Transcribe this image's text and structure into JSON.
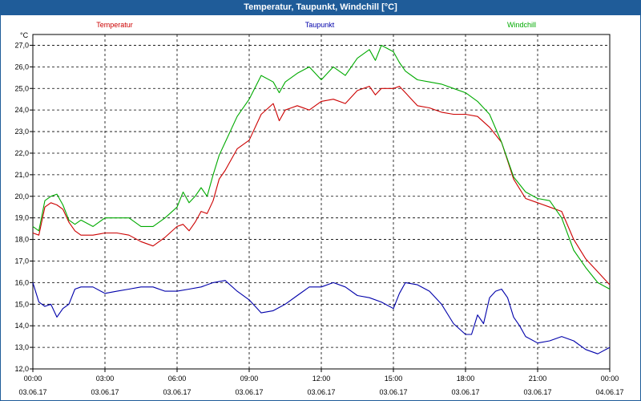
{
  "window": {
    "title": "Temperatur, Taupunkt, Windchill [°C]"
  },
  "colors": {
    "titlebar": "#1f5c99",
    "grid": "#000000",
    "temperatur": "#cc0000",
    "taupunkt": "#0000aa",
    "windchill": "#00aa00"
  },
  "chart_data": {
    "type": "line",
    "title": "Temperatur, Taupunkt, Windchill [°C]",
    "ylabel": "°C",
    "ylim": [
      12.0,
      27.5
    ],
    "yticks": [
      "12,0",
      "13,0",
      "14,0",
      "15,0",
      "16,0",
      "17,0",
      "18,0",
      "19,0",
      "20,0",
      "21,0",
      "22,0",
      "23,0",
      "24,0",
      "25,0",
      "26,0",
      "27,0"
    ],
    "xlim": [
      0,
      24
    ],
    "xticks": [
      {
        "time": "00:00",
        "date": "03.06.17"
      },
      {
        "time": "03:00",
        "date": "03.06.17"
      },
      {
        "time": "06:00",
        "date": "03.06.17"
      },
      {
        "time": "09:00",
        "date": "03.06.17"
      },
      {
        "time": "12:00",
        "date": "03.06.17"
      },
      {
        "time": "15:00",
        "date": "03.06.17"
      },
      {
        "time": "18:00",
        "date": "03.06.17"
      },
      {
        "time": "21:00",
        "date": "03.06.17"
      },
      {
        "time": "00:00",
        "date": "04.06.17"
      }
    ],
    "series": [
      {
        "name": "Temperatur",
        "color": "#cc0000",
        "x": [
          0,
          0.25,
          0.5,
          0.75,
          1,
          1.25,
          1.5,
          1.75,
          2,
          2.5,
          3,
          3.5,
          4,
          4.5,
          5,
          5.5,
          6,
          6.25,
          6.5,
          6.75,
          7,
          7.25,
          7.5,
          7.75,
          8,
          8.5,
          9,
          9.5,
          10,
          10.25,
          10.5,
          10.75,
          11,
          11.5,
          12,
          12.5,
          13,
          13.5,
          14,
          14.25,
          14.5,
          15,
          15.25,
          15.5,
          16,
          16.5,
          17,
          17.5,
          18,
          18.5,
          19,
          19.5,
          20,
          20.5,
          21,
          21.5,
          22,
          22.5,
          23,
          23.5,
          24
        ],
        "values": [
          18.3,
          18.2,
          19.5,
          19.7,
          19.6,
          19.4,
          18.8,
          18.4,
          18.2,
          18.2,
          18.3,
          18.3,
          18.2,
          17.9,
          17.7,
          18.1,
          18.6,
          18.7,
          18.4,
          18.8,
          19.3,
          19.2,
          19.8,
          20.8,
          21.2,
          22.2,
          22.6,
          23.8,
          24.3,
          23.5,
          24.0,
          24.1,
          24.2,
          24.0,
          24.4,
          24.5,
          24.3,
          24.9,
          25.1,
          24.7,
          25.0,
          25.0,
          25.1,
          24.8,
          24.2,
          24.1,
          23.9,
          23.8,
          23.8,
          23.7,
          23.2,
          22.5,
          20.8,
          19.9,
          19.7,
          19.5,
          19.3,
          18.0,
          17.1,
          16.5,
          15.9
        ]
      },
      {
        "name": "Taupunkt",
        "color": "#0000aa",
        "x": [
          0,
          0.25,
          0.5,
          0.75,
          1,
          1.25,
          1.5,
          1.75,
          2,
          2.5,
          3,
          3.5,
          4,
          4.5,
          5,
          5.5,
          6,
          6.5,
          7,
          7.5,
          8,
          8.5,
          9,
          9.5,
          10,
          10.5,
          11,
          11.5,
          12,
          12.5,
          13,
          13.5,
          14,
          14.5,
          15,
          15.25,
          15.5,
          16,
          16.5,
          17,
          17.5,
          18,
          18.25,
          18.5,
          18.75,
          19,
          19.25,
          19.5,
          19.75,
          20,
          20.25,
          20.5,
          21,
          21.5,
          22,
          22.5,
          23,
          23.5,
          24
        ],
        "values": [
          16.0,
          15.1,
          14.9,
          15.0,
          14.4,
          14.8,
          15.0,
          15.7,
          15.8,
          15.8,
          15.5,
          15.6,
          15.7,
          15.8,
          15.8,
          15.6,
          15.6,
          15.7,
          15.8,
          16.0,
          16.1,
          15.6,
          15.2,
          14.6,
          14.7,
          15.0,
          15.4,
          15.8,
          15.8,
          16.0,
          15.8,
          15.4,
          15.3,
          15.1,
          14.8,
          15.5,
          16.0,
          15.9,
          15.6,
          15.0,
          14.1,
          13.6,
          13.6,
          14.5,
          14.1,
          15.3,
          15.6,
          15.7,
          15.3,
          14.4,
          14.0,
          13.5,
          13.2,
          13.3,
          13.5,
          13.3,
          12.9,
          12.7,
          13.0
        ]
      },
      {
        "name": "Windchill",
        "color": "#00aa00",
        "x": [
          0,
          0.25,
          0.5,
          0.75,
          1,
          1.25,
          1.5,
          1.75,
          2,
          2.5,
          3,
          3.5,
          4,
          4.5,
          5,
          5.5,
          6,
          6.25,
          6.5,
          6.75,
          7,
          7.25,
          7.5,
          7.75,
          8,
          8.5,
          9,
          9.5,
          10,
          10.25,
          10.5,
          10.75,
          11,
          11.5,
          12,
          12.5,
          13,
          13.5,
          14,
          14.25,
          14.5,
          15,
          15.25,
          15.5,
          16,
          16.5,
          17,
          17.5,
          18,
          18.5,
          19,
          19.5,
          20,
          20.5,
          21,
          21.5,
          22,
          22.5,
          23,
          23.5,
          24
        ],
        "values": [
          18.6,
          18.4,
          19.8,
          20.0,
          20.1,
          19.6,
          18.9,
          18.7,
          18.9,
          18.6,
          19.0,
          19.0,
          19.0,
          18.6,
          18.6,
          19.0,
          19.5,
          20.2,
          19.7,
          20.0,
          20.4,
          20.0,
          21.0,
          21.9,
          22.5,
          23.7,
          24.5,
          25.6,
          25.3,
          24.8,
          25.3,
          25.5,
          25.7,
          26.0,
          25.4,
          26.0,
          25.6,
          26.4,
          26.8,
          26.3,
          27.0,
          26.7,
          26.2,
          25.8,
          25.4,
          25.3,
          25.2,
          25.0,
          24.8,
          24.4,
          23.8,
          22.5,
          20.9,
          20.2,
          19.9,
          19.8,
          19.0,
          17.5,
          16.7,
          16.0,
          15.7
        ]
      }
    ]
  }
}
